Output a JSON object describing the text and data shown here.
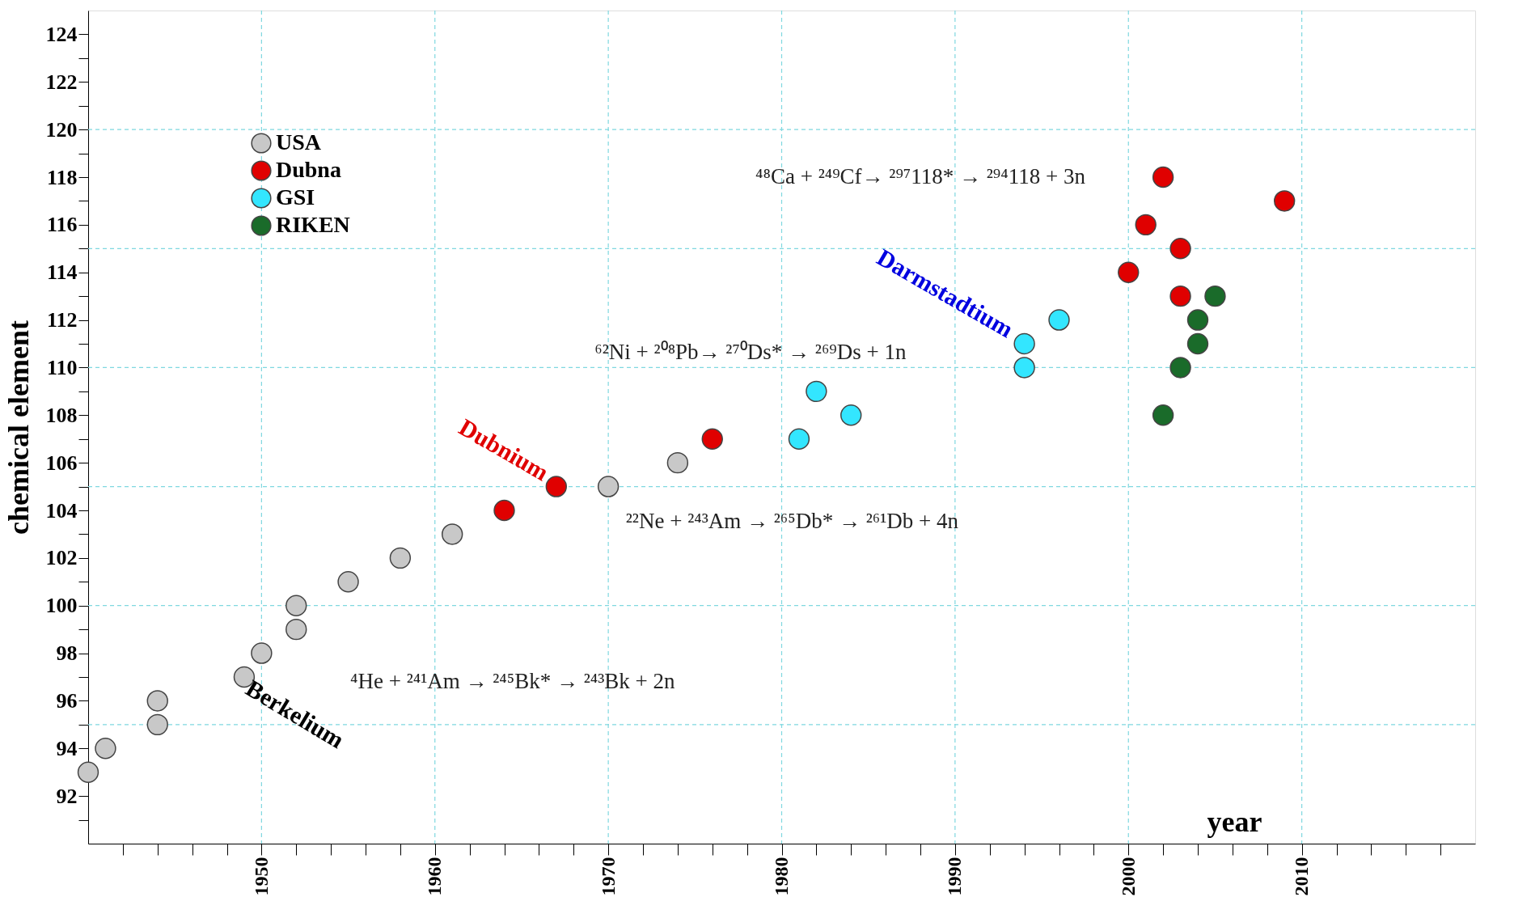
{
  "chart_data": {
    "type": "scatter",
    "xlabel": "year",
    "ylabel": "chemical  element",
    "xlim": [
      1940,
      2020
    ],
    "ylim": [
      90,
      125
    ],
    "xticks": [
      {
        "value": 1942,
        "label": null
      },
      {
        "value": 1944,
        "label": null
      },
      {
        "value": 1946,
        "label": null
      },
      {
        "value": 1948,
        "label": null
      },
      1950,
      {
        "value": 1952,
        "label": null
      },
      {
        "value": 1954,
        "label": null
      },
      {
        "value": 1956,
        "label": null
      },
      {
        "value": 1958,
        "label": null
      },
      1960,
      {
        "value": 1962,
        "label": null
      },
      {
        "value": 1964,
        "label": null
      },
      {
        "value": 1966,
        "label": null
      },
      {
        "value": 1968,
        "label": null
      },
      1970,
      {
        "value": 1972,
        "label": null
      },
      {
        "value": 1974,
        "label": null
      },
      {
        "value": 1976,
        "label": null
      },
      {
        "value": 1978,
        "label": null
      },
      1980,
      {
        "value": 1982,
        "label": null
      },
      {
        "value": 1984,
        "label": null
      },
      {
        "value": 1986,
        "label": null
      },
      {
        "value": 1988,
        "label": null
      },
      1990,
      {
        "value": 1992,
        "label": null
      },
      {
        "value": 1994,
        "label": null
      },
      {
        "value": 1996,
        "label": null
      },
      {
        "value": 1998,
        "label": null
      },
      2000,
      {
        "value": 2002,
        "label": null
      },
      {
        "value": 2004,
        "label": null
      },
      {
        "value": 2006,
        "label": null
      },
      {
        "value": 2008,
        "label": null
      },
      2010,
      {
        "value": 2012,
        "label": null
      },
      {
        "value": 2014,
        "label": null
      },
      {
        "value": 2016,
        "label": null
      },
      {
        "value": 2018,
        "label": null
      }
    ],
    "yticks": [
      {
        "value": 91,
        "label": null
      },
      92,
      {
        "value": 93,
        "label": null
      },
      94,
      {
        "value": 95,
        "label": null
      },
      96,
      {
        "value": 97,
        "label": null
      },
      98,
      {
        "value": 99,
        "label": null
      },
      100,
      {
        "value": 101,
        "label": null
      },
      102,
      {
        "value": 103,
        "label": null
      },
      104,
      {
        "value": 105,
        "label": null
      },
      106,
      {
        "value": 107,
        "label": null
      },
      108,
      {
        "value": 109,
        "label": null
      },
      110,
      {
        "value": 111,
        "label": null
      },
      112,
      {
        "value": 113,
        "label": null
      },
      114,
      {
        "value": 115,
        "label": null
      },
      116,
      {
        "value": 117,
        "label": null
      },
      118,
      {
        "value": 119,
        "label": null
      },
      120,
      {
        "value": 121,
        "label": null
      },
      122,
      {
        "value": 123,
        "label": null
      },
      124
    ],
    "grid": true,
    "legend": "top left",
    "marker": "circle",
    "series": [
      {
        "name": "USA",
        "color": "#c8c8c8",
        "x": [
          1940,
          1941,
          1944,
          1944,
          1949,
          1950,
          1952,
          1952,
          1955,
          1958,
          1961,
          1970,
          1974
        ],
        "values": [
          93,
          94,
          95,
          96,
          97,
          98,
          99,
          100,
          101,
          102,
          103,
          105,
          106
        ]
      },
      {
        "name": "Dubna",
        "color": "#e00000",
        "x": [
          1964,
          1967,
          1976,
          2000,
          2001,
          2002,
          2003,
          2003,
          2009
        ],
        "values": [
          104,
          105,
          107,
          114,
          116,
          118,
          115,
          113,
          117
        ]
      },
      {
        "name": "GSI",
        "color": "#33e6ff",
        "x": [
          1981,
          1982,
          1984,
          1994,
          1994,
          1996
        ],
        "values": [
          107,
          109,
          108,
          110,
          111,
          112
        ]
      },
      {
        "name": "RIKEN",
        "color": "#1a6b2a",
        "x": [
          2002,
          2003,
          2004,
          2004,
          2005
        ],
        "values": [
          108,
          110,
          111,
          112,
          113
        ]
      }
    ],
    "annotations": [
      "⁴⁸Ca + ²⁴⁹Cf→ ²⁹⁷118* → ²⁹⁴118 + 3n",
      "⁶²Ni + ²⁰⁸Pb→ ²⁷⁰Ds* → ²⁶⁹Ds + 1n",
      "²²Ne + ²⁴³Am → ²⁶⁵Db* → ²⁶¹Db + 4n",
      "⁴He + ²⁴¹Am → ²⁴⁵Bk* → ²⁴³Bk + 2n",
      {
        "text": "Berkelium",
        "x": 1949,
        "y": 97
      },
      {
        "text": "Dubnium",
        "x": 1967,
        "y": 105
      },
      {
        "text": "Darmstadtium",
        "x": 1994,
        "y": 111
      }
    ]
  }
}
